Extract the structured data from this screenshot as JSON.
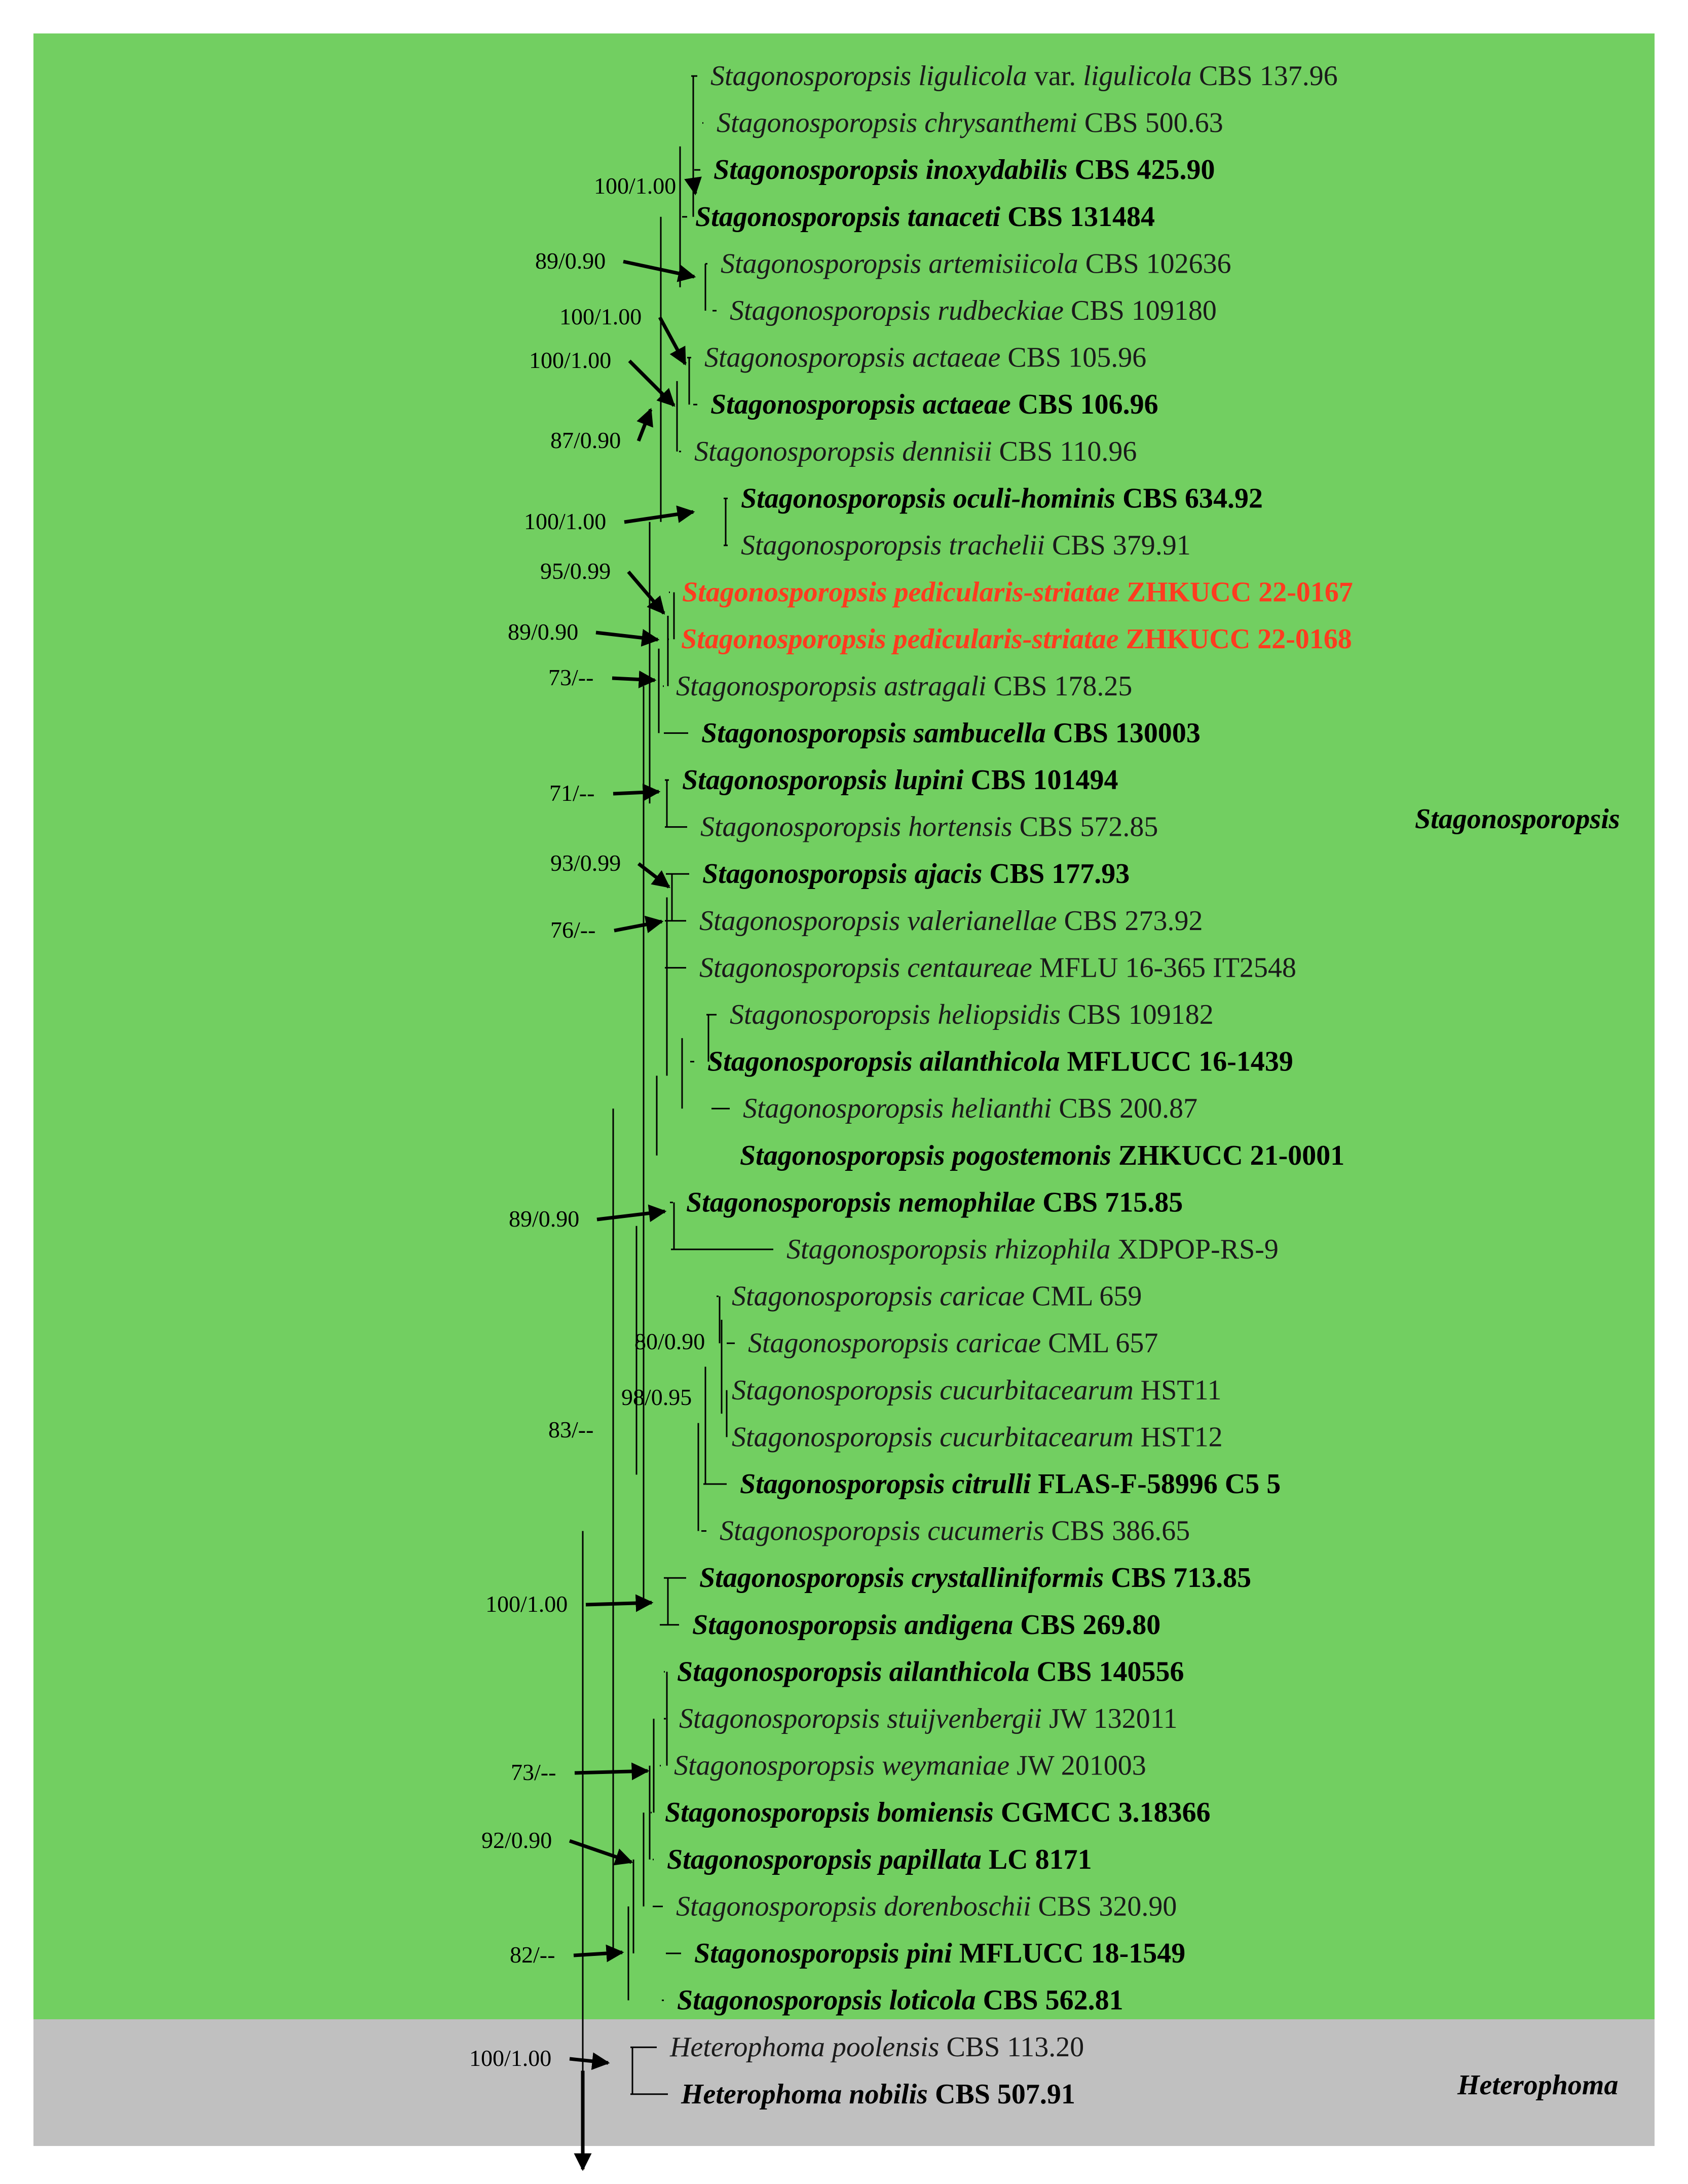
{
  "clades": [
    {
      "name": "Stagonosporopsis",
      "color": "#72cf61"
    },
    {
      "name": "Heterophoma",
      "color": "#c0c0c0"
    }
  ],
  "taxa": [
    {
      "sp": "Stagonosporopsis ligulicola",
      "mid": " var. ",
      "sp2": "ligulicola",
      "code": "CBS 137.96",
      "style": "normal"
    },
    {
      "sp": "Stagonosporopsis chrysanthemi",
      "code": "CBS 500.63",
      "style": "normal"
    },
    {
      "sp": "Stagonosporopsis inoxydabilis",
      "code": "CBS 425.90",
      "style": "bold"
    },
    {
      "sp": "Stagonosporopsis tanaceti",
      "code": "CBS 131484",
      "style": "bold"
    },
    {
      "sp": "Stagonosporopsis artemisiicola",
      "code": "CBS 102636",
      "style": "normal"
    },
    {
      "sp": "Stagonosporopsis rudbeckiae",
      "code": "CBS 109180",
      "style": "normal"
    },
    {
      "sp": "Stagonosporopsis actaeae",
      "code": "CBS 105.96",
      "style": "normal"
    },
    {
      "sp": "Stagonosporopsis actaeae",
      "code": "CBS 106.96",
      "style": "bold"
    },
    {
      "sp": "Stagonosporopsis dennisii",
      "code": "CBS 110.96",
      "style": "normal"
    },
    {
      "sp": "Stagonosporopsis oculi-hominis",
      "code": "CBS 634.92",
      "style": "bold"
    },
    {
      "sp": "Stagonosporopsis trachelii",
      "code": " CBS 379.91",
      "style": "normal"
    },
    {
      "sp": "Stagonosporopsis pedicularis-striatae",
      "code": "  ZHKUCC 22-0167",
      "style": "red"
    },
    {
      "sp": "Stagonosporopsis pedicularis-striatae",
      "code": "ZHKUCC 22-0168",
      "style": "red"
    },
    {
      "sp": "Stagonosporopsis astragali",
      "code": "CBS 178.25",
      "style": "normal"
    },
    {
      "sp": "Stagonosporopsis sambucella",
      "code": "CBS 130003",
      "style": "bold"
    },
    {
      "sp": "Stagonosporopsis lupini",
      "code": "CBS 101494",
      "style": "bold"
    },
    {
      "sp": "Stagonosporopsis hortensis",
      "code": "CBS 572.85",
      "style": "normal"
    },
    {
      "sp": "Stagonosporopsis ajacis",
      "code": "CBS 177.93",
      "style": "bold"
    },
    {
      "sp": "Stagonosporopsis valerianellae",
      "code": "CBS 273.92",
      "style": "normal"
    },
    {
      "sp": "Stagonosporopsis centaureae",
      "code": "MFLU 16-365 IT2548",
      "style": "normal"
    },
    {
      "sp": "Stagonosporopsis heliopsidis",
      "code": "CBS 109182",
      "style": "normal"
    },
    {
      "sp": "Stagonosporopsis ailanthicola",
      "code": "MFLUCC 16-1439",
      "style": "bold"
    },
    {
      "sp": "Stagonosporopsis helianthi",
      "code": "CBS 200.87",
      "style": "normal"
    },
    {
      "sp": "Stagonosporopsis pogostemonis",
      "code": "  ZHKUCC 21-0001",
      "style": "bold"
    },
    {
      "sp": "Stagonosporopsis nemophilae",
      "code": "CBS 715.85",
      "style": "bold"
    },
    {
      "sp": "Stagonosporopsis rhizophila",
      "code": "   XDPOP-RS-9",
      "style": "normal"
    },
    {
      "sp": "Stagonosporopsis caricae",
      "code": "  CML 659",
      "style": "normal"
    },
    {
      "sp": "Stagonosporopsis caricae",
      "code": "  CML 657",
      "style": "normal"
    },
    {
      "sp": "Stagonosporopsis cucurbitacearum",
      "code": "HST11",
      "style": "normal"
    },
    {
      "sp": "Stagonosporopsis cucurbitacearum",
      "code": "HST12",
      "style": "normal"
    },
    {
      "sp": "Stagonosporopsis citrulli",
      "code": "FLAS-F-58996 C5 5",
      "style": "bold"
    },
    {
      "sp": "Stagonosporopsis cucumeris",
      "code": "CBS 386.65",
      "style": "normal"
    },
    {
      "sp": "Stagonosporopsis crystalliniformis",
      "code": "CBS 713.85",
      "style": "bold"
    },
    {
      "sp": "Stagonosporopsis andigena",
      "code": "CBS 269.80",
      "style": "bold"
    },
    {
      "sp": "Stagonosporopsis ailanthicola",
      "code": "CBS 140556",
      "style": "bold"
    },
    {
      "sp": "Stagonosporopsis stuijvenbergii",
      "code": "JW 132011",
      "style": "normal"
    },
    {
      "sp": "Stagonosporopsis weymaniae",
      "code": "JW 201003",
      "style": "normal"
    },
    {
      "sp": "Stagonosporopsis bomiensis",
      "code": "CGMCC 3.18366",
      "style": "bold"
    },
    {
      "sp": "Stagonosporopsis papillata",
      "code": "LC 8171",
      "style": "bold"
    },
    {
      "sp": "Stagonosporopsis dorenboschii",
      "code": "CBS 320.90",
      "style": "normal"
    },
    {
      "sp": "Stagonosporopsis pini",
      "code": "MFLUCC 18-1549",
      "style": "bold"
    },
    {
      "sp": "Stagonosporopsis loticola",
      "code": "  CBS 562.81",
      "style": "bold"
    },
    {
      "sp": "Heterophoma poolensis",
      "code": "CBS 113.20",
      "style": "normal"
    },
    {
      "sp": "Heterophoma nobilis",
      "code": "CBS 507.91",
      "style": "bold"
    }
  ],
  "supports": [
    "100/1.00",
    "89/0.90",
    "100/1.00",
    "100/1.00",
    "87/0.90",
    "100/1.00",
    "95/0.99",
    "89/0.90",
    "73/--",
    "71/--",
    "93/0.99",
    "76/--",
    "89/0.90",
    "80/0.90",
    "98/0.95",
    "83/--",
    "100/1.00",
    "73/--",
    "92/0.90",
    "82/--",
    "100/1.00"
  ]
}
